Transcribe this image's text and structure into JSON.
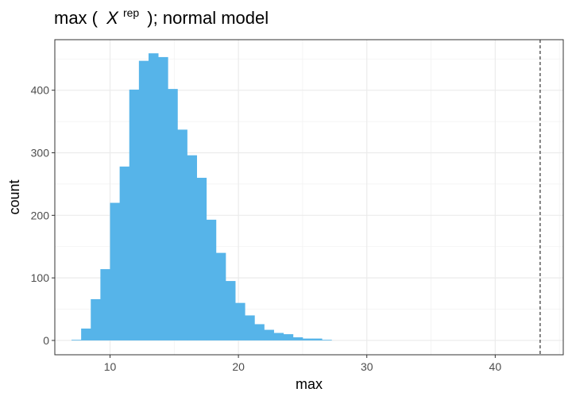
{
  "chart_data": {
    "type": "bar",
    "title": {
      "prefix": "max (",
      "symbol": "X",
      "superscript": "rep",
      "suffix": "); normal model"
    },
    "xlabel": "max",
    "ylabel": "count",
    "xlim": [
      5.7,
      45.3
    ],
    "ylim": [
      -22.9,
      480.8
    ],
    "xticks": [
      10,
      20,
      30,
      40
    ],
    "yticks": [
      0,
      100,
      200,
      300,
      400
    ],
    "grid": true,
    "bar_color": "#56B4E9",
    "bins": {
      "start": 7.0,
      "width": 0.75,
      "counts": [
        1,
        19,
        66,
        114,
        220,
        278,
        401,
        447,
        459,
        453,
        402,
        337,
        296,
        260,
        193,
        140,
        95,
        60,
        40,
        26,
        17,
        12,
        10,
        5,
        3,
        3,
        1
      ]
    },
    "reference_line": {
      "x": 43.5,
      "style": "dashed",
      "color": "#333333"
    }
  }
}
